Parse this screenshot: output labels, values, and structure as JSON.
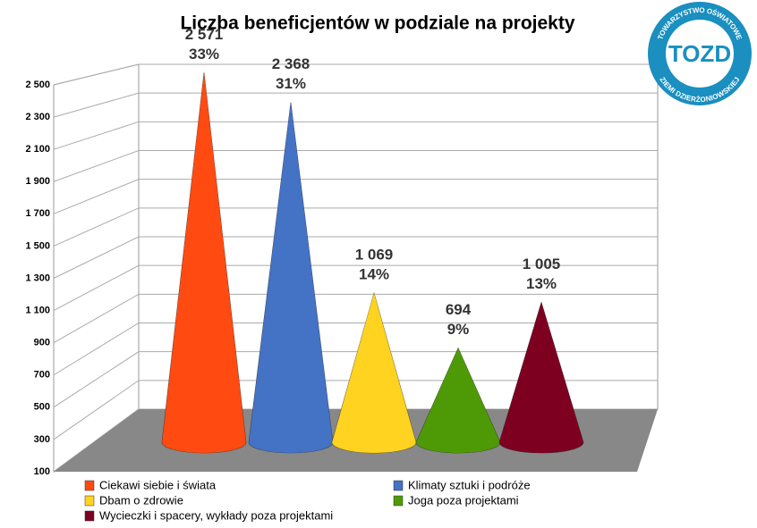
{
  "chart_data": {
    "type": "cone",
    "title": "Liczba beneficjentów w podziale na projekty",
    "categories": [
      "Ciekawi siebie i świata",
      "Klimaty sztuki i podróże",
      "Dbam o zdrowie",
      "Joga poza projektami",
      "Wycieczki i spacery, wykłady poza projektami"
    ],
    "values": [
      2571,
      2368,
      1069,
      694,
      1005
    ],
    "value_labels": [
      "2 571",
      "2 368",
      "1 069",
      "694",
      "1 005"
    ],
    "shares": {
      "values": [
        33,
        31,
        14,
        9,
        13
      ],
      "value_labels": [
        "33%",
        "31%",
        "14%",
        "9%",
        "13%"
      ]
    },
    "colors": [
      "#ff4a12",
      "#4472c4",
      "#ffd320",
      "#4e9a06",
      "#7e0021"
    ],
    "ylim": [
      100,
      2500
    ],
    "yticks": [
      100,
      300,
      500,
      700,
      900,
      {
        "value": 1100,
        "label": "1 100"
      },
      {
        "value": 1300,
        "label": "1 300"
      },
      {
        "value": 1500,
        "label": "1 500"
      },
      {
        "value": 1700,
        "label": "1 700"
      },
      {
        "value": 1900,
        "label": "1 900"
      },
      {
        "value": 2100,
        "label": "2 100"
      },
      {
        "value": 2300,
        "label": "2 300"
      },
      {
        "value": 2500,
        "label": "2 500"
      }
    ],
    "grid": true
  },
  "logo": {
    "top": "TOWARZYSTWO OŚWIATOWE",
    "bottom": "ZIEMI DZIERŻONIOWSKIEJ",
    "mark": "TOZD"
  }
}
